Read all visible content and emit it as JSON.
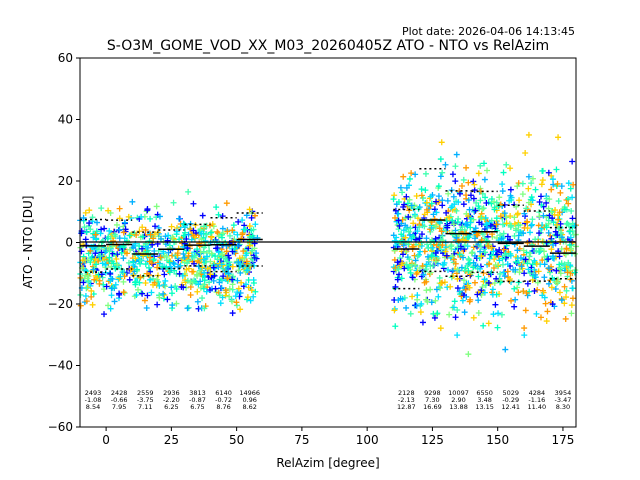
{
  "chart_data": {
    "type": "scatter",
    "plot_date": "Plot date: 2026-04-06 14:13:45",
    "title": "S-O3M_GOME_VOD_XX_M03_20260405Z ATO - NTO vs RelAzim",
    "xlabel": "RelAzim [degree]",
    "ylabel": "ATO - NTO [DU]",
    "xlim": [
      -10,
      180
    ],
    "ylim": [
      -60,
      60
    ],
    "xticks": [
      0,
      25,
      50,
      75,
      100,
      125,
      150,
      175
    ],
    "yticks": [
      -60,
      -40,
      -20,
      0,
      20,
      40,
      60
    ],
    "zero_line": 0,
    "point_colors": [
      "#00ffc0",
      "#40ffb0",
      "#80ff80",
      "#00b0ff",
      "#ffd000",
      "#ff9a00",
      "#0000ff",
      "#00e0ff"
    ],
    "bins": [
      {
        "x": -5,
        "count": "2493",
        "mean": "-1.08",
        "std": "8.54",
        "m": -1.08,
        "s": 8.54
      },
      {
        "x": 5,
        "count": "2428",
        "mean": "-0.66",
        "std": "7.95",
        "m": -0.66,
        "s": 7.95
      },
      {
        "x": 15,
        "count": "2559",
        "mean": "-3.75",
        "std": "7.11",
        "m": -3.75,
        "s": 7.11
      },
      {
        "x": 25,
        "count": "2936",
        "mean": "-2.20",
        "std": "6.25",
        "m": -2.2,
        "s": 6.25
      },
      {
        "x": 35,
        "count": "3813",
        "mean": "-0.87",
        "std": "6.75",
        "m": -0.87,
        "s": 6.75
      },
      {
        "x": 45,
        "count": "6140",
        "mean": "-0.72",
        "std": "8.76",
        "m": -0.72,
        "s": 8.76
      },
      {
        "x": 55,
        "count": "14966",
        "mean": "0.96",
        "std": "8.62",
        "m": 0.96,
        "s": 8.62
      },
      {
        "x": 115,
        "count": "2128",
        "mean": "-2.13",
        "std": "12.87",
        "m": -2.13,
        "s": 12.87
      },
      {
        "x": 125,
        "count": "9298",
        "mean": "7.30",
        "std": "16.69",
        "m": 7.3,
        "s": 16.69
      },
      {
        "x": 135,
        "count": "10097",
        "mean": "2.90",
        "std": "13.88",
        "m": 2.9,
        "s": 13.88
      },
      {
        "x": 145,
        "count": "6550",
        "mean": "3.48",
        "std": "13.15",
        "m": 3.48,
        "s": 13.15
      },
      {
        "x": 155,
        "count": "5029",
        "mean": "-0.29",
        "std": "12.41",
        "m": -0.29,
        "s": 12.41
      },
      {
        "x": 165,
        "count": "4284",
        "mean": "-1.16",
        "std": "11.40",
        "m": -1.16,
        "s": 11.4
      },
      {
        "x": 175,
        "count": "3954",
        "mean": "-3.47",
        "std": "8.30",
        "m": -3.47,
        "s": 8.3
      }
    ],
    "clusters": [
      {
        "x_range": [
          -10,
          58
        ],
        "center": -5,
        "spread": 14
      },
      {
        "x_range": [
          110,
          180
        ],
        "center": 0,
        "spread": 22
      }
    ],
    "grid": false
  }
}
